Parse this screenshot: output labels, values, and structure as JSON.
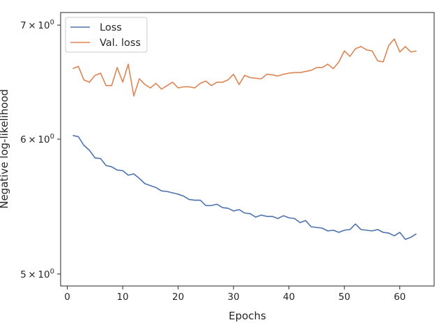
{
  "chart_data": {
    "type": "line",
    "title": "",
    "xlabel": "Epochs",
    "ylabel": "Negative log-likelihood",
    "yscale": "log",
    "xlim": [
      -1.2,
      66.2
    ],
    "ylim": [
      4.92,
      7.12
    ],
    "grid": false,
    "legend_position": "top-left",
    "x_ticks": [
      0,
      10,
      20,
      30,
      40,
      50,
      60
    ],
    "y_ticks": [
      {
        "value": 5,
        "label_base": "5",
        "label_exp": "0"
      },
      {
        "value": 6,
        "label_base": "6",
        "label_exp": "0"
      },
      {
        "value": 7,
        "label_base": "7",
        "label_exp": "0"
      }
    ],
    "tick_times_symbol": "×",
    "tick_exp_base": "10",
    "x": [
      1,
      2,
      3,
      4,
      5,
      6,
      7,
      8,
      9,
      10,
      11,
      12,
      13,
      14,
      15,
      16,
      17,
      18,
      19,
      20,
      21,
      22,
      23,
      24,
      25,
      26,
      27,
      28,
      29,
      30,
      31,
      32,
      33,
      34,
      35,
      36,
      37,
      38,
      39,
      40,
      41,
      42,
      43,
      44,
      45,
      46,
      47,
      48,
      49,
      50,
      51,
      52,
      53,
      54,
      55,
      56,
      57,
      58,
      59,
      60,
      61,
      62,
      63
    ],
    "series": [
      {
        "name": "Loss",
        "color": "#4c72b0",
        "values": [
          6.03,
          6.02,
          5.95,
          5.91,
          5.85,
          5.845,
          5.79,
          5.78,
          5.755,
          5.75,
          5.715,
          5.725,
          5.69,
          5.65,
          5.635,
          5.62,
          5.595,
          5.59,
          5.58,
          5.57,
          5.555,
          5.53,
          5.525,
          5.525,
          5.485,
          5.485,
          5.495,
          5.47,
          5.465,
          5.445,
          5.455,
          5.43,
          5.425,
          5.4,
          5.415,
          5.405,
          5.405,
          5.39,
          5.41,
          5.395,
          5.39,
          5.36,
          5.375,
          5.33,
          5.325,
          5.32,
          5.3,
          5.305,
          5.29,
          5.305,
          5.31,
          5.35,
          5.31,
          5.305,
          5.3,
          5.31,
          5.29,
          5.285,
          5.265,
          5.29,
          5.24,
          5.255,
          5.28
        ]
      },
      {
        "name": "Val. loss",
        "color": "#dd8452",
        "values": [
          6.6,
          6.62,
          6.5,
          6.48,
          6.54,
          6.56,
          6.45,
          6.45,
          6.61,
          6.48,
          6.64,
          6.36,
          6.51,
          6.46,
          6.43,
          6.47,
          6.42,
          6.45,
          6.48,
          6.43,
          6.44,
          6.44,
          6.43,
          6.47,
          6.49,
          6.45,
          6.48,
          6.48,
          6.5,
          6.55,
          6.46,
          6.54,
          6.52,
          6.515,
          6.51,
          6.55,
          6.545,
          6.535,
          6.55,
          6.56,
          6.565,
          6.565,
          6.575,
          6.585,
          6.61,
          6.61,
          6.64,
          6.6,
          6.66,
          6.76,
          6.71,
          6.78,
          6.8,
          6.77,
          6.76,
          6.67,
          6.66,
          6.81,
          6.87,
          6.75,
          6.8,
          6.75,
          6.76
        ]
      }
    ]
  }
}
